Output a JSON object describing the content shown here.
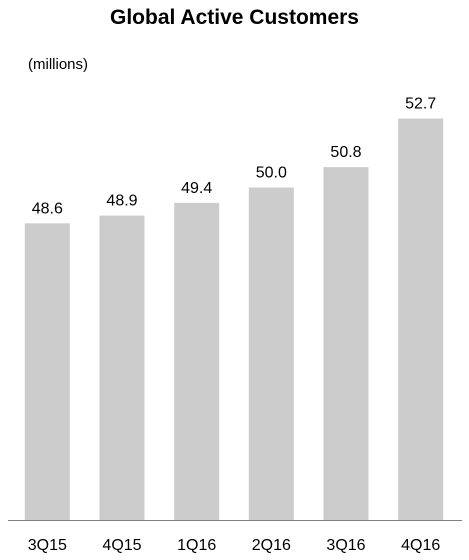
{
  "chart_data": {
    "type": "bar",
    "title": "Global Active Customers",
    "unit_label": "(millions)",
    "categories": [
      "3Q15",
      "4Q15",
      "1Q16",
      "2Q16",
      "3Q16",
      "4Q16"
    ],
    "values": [
      48.6,
      48.9,
      49.4,
      50.0,
      50.8,
      52.7
    ],
    "value_labels": [
      "48.6",
      "48.9",
      "49.4",
      "50.0",
      "50.8",
      "52.7"
    ],
    "xlabel": "",
    "ylabel": "",
    "ylim": [
      37,
      53.5
    ],
    "grid": false,
    "legend": "none",
    "colors": {
      "bar": "#cccccc",
      "axis": "#7f7f7f",
      "text": "#000000"
    }
  }
}
